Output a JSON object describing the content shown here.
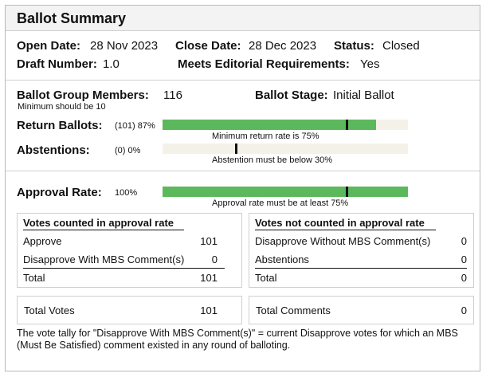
{
  "title": "Ballot Summary",
  "info": {
    "open_date_label": "Open Date:",
    "open_date": "28 Nov 2023",
    "close_date_label": "Close Date:",
    "close_date": "28 Dec 2023",
    "status_label": "Status:",
    "status": "Closed",
    "draft_label": "Draft Number:",
    "draft": "1.0",
    "meets_label": "Meets Editorial Requirements:",
    "meets": "Yes"
  },
  "ballot": {
    "members_label": "Ballot Group Members:",
    "members": "116",
    "members_note": "Minimum should be 10",
    "stage_label": "Ballot Stage:",
    "stage": "Initial Ballot",
    "return_label": "Return Ballots:",
    "return_value": "(101) 87%",
    "return_fraction": 0.87,
    "return_threshold": 0.75,
    "return_note": "Minimum return rate is 75%",
    "abstain_label": "Abstentions:",
    "abstain_value": "(0) 0%",
    "abstain_fraction": 0.0,
    "abstain_threshold": 0.3,
    "abstain_note": "Abstention must be below 30%"
  },
  "approval": {
    "label": "Approval Rate:",
    "value": "100%",
    "fraction": 1.0,
    "threshold": 0.75,
    "note": "Approval rate must be at least 75%"
  },
  "counted": {
    "heading": "Votes counted in approval rate",
    "rows": [
      {
        "label": "Approve",
        "value": "101"
      },
      {
        "label": "Disapprove With MBS Comment(s)",
        "value": "0"
      }
    ],
    "total_label": "Total",
    "total": "101"
  },
  "not_counted": {
    "heading": "Votes not counted in approval rate",
    "rows": [
      {
        "label": "Disapprove Without MBS Comment(s)",
        "value": "0"
      },
      {
        "label": "Abstentions",
        "value": "0"
      }
    ],
    "total_label": "Total",
    "total": "0"
  },
  "totals": {
    "votes_label": "Total Votes",
    "votes": "101",
    "comments_label": "Total Comments",
    "comments": "0"
  },
  "footnote": "The vote tally for \"Disapprove With MBS Comment(s)\" = current Disapprove votes for which an MBS (Must Be Satisfied) comment existed in any round of balloting.",
  "colors": {
    "bar_fill": "#5cb85c",
    "bar_track": "#f4f1e8",
    "marker": "#111111"
  }
}
